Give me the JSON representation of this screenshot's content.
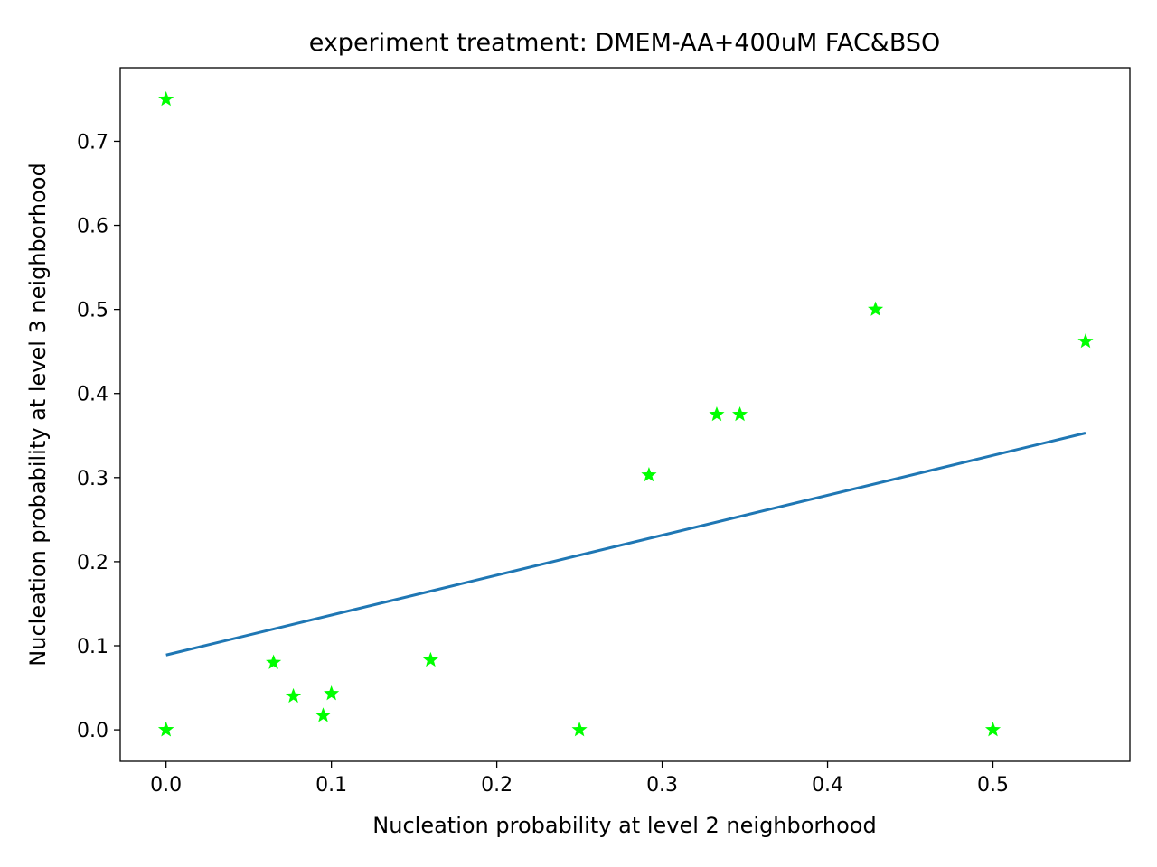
{
  "chart_data": {
    "type": "scatter",
    "title": "experiment treatment: DMEM-AA+400uM FAC&BSO",
    "xlabel": "Nucleation probability at level 2 neighborhood",
    "ylabel": "Nucleation probability at level 3 neighborhood",
    "xlim": [
      -0.0277,
      0.5828
    ],
    "ylim": [
      -0.0375,
      0.7875
    ],
    "xticks": [
      0.0,
      0.1,
      0.2,
      0.3,
      0.4,
      0.5
    ],
    "xtick_labels": [
      "0.0",
      "0.1",
      "0.2",
      "0.3",
      "0.4",
      "0.5"
    ],
    "yticks": [
      0.0,
      0.1,
      0.2,
      0.3,
      0.4,
      0.5,
      0.6,
      0.7
    ],
    "ytick_labels": [
      "0.0",
      "0.1",
      "0.2",
      "0.3",
      "0.4",
      "0.5",
      "0.6",
      "0.7"
    ],
    "grid": false,
    "points": {
      "marker": "star",
      "color": "#00ff00",
      "x": [
        0.0,
        0.0,
        0.0,
        0.065,
        0.077,
        0.095,
        0.1,
        0.16,
        0.25,
        0.292,
        0.333,
        0.347,
        0.429,
        0.5,
        0.556
      ],
      "y": [
        0.75,
        0.0,
        0.0,
        0.08,
        0.04,
        0.017,
        0.043,
        0.083,
        0.0,
        0.303,
        0.375,
        0.375,
        0.5,
        0.0,
        0.462
      ]
    },
    "fit_line": {
      "color": "#1f77b4",
      "x": [
        0.0,
        0.556
      ],
      "y": [
        0.089,
        0.353
      ]
    }
  }
}
